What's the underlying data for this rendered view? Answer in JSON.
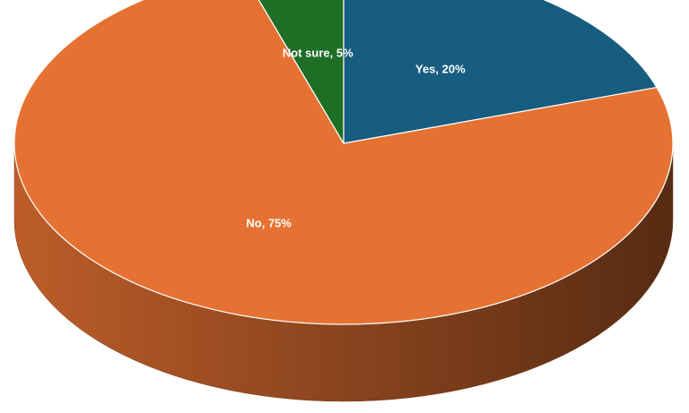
{
  "chart_data": {
    "type": "pie",
    "values": [
      20,
      75,
      5
    ],
    "value_labels": [
      "Yes, 20%",
      "No, 75%",
      "Not sure, 5%"
    ],
    "colors": [
      "#175d80",
      "#e57232",
      "#1e6e26"
    ]
  }
}
